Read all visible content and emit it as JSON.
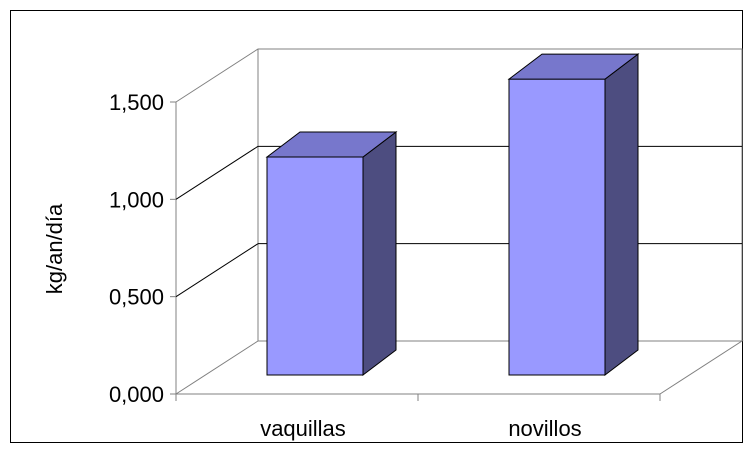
{
  "chart_data": {
    "type": "bar",
    "style": "3d-column",
    "categories": [
      "vaquillas",
      "novillos"
    ],
    "values": [
      1.12,
      1.52
    ],
    "ylabel": "kg/an/día",
    "xlabel": "",
    "ylim": [
      0,
      1.5
    ],
    "yticks": [
      "0,000",
      "0,500",
      "1,000",
      "1,500"
    ],
    "grid": true,
    "legend": "none",
    "colors": {
      "bar_front": "#9999ff",
      "bar_top": "#7777cc",
      "bar_side": "#4d4d80",
      "gridline": "#000000",
      "wall_edge": "#808080"
    }
  }
}
